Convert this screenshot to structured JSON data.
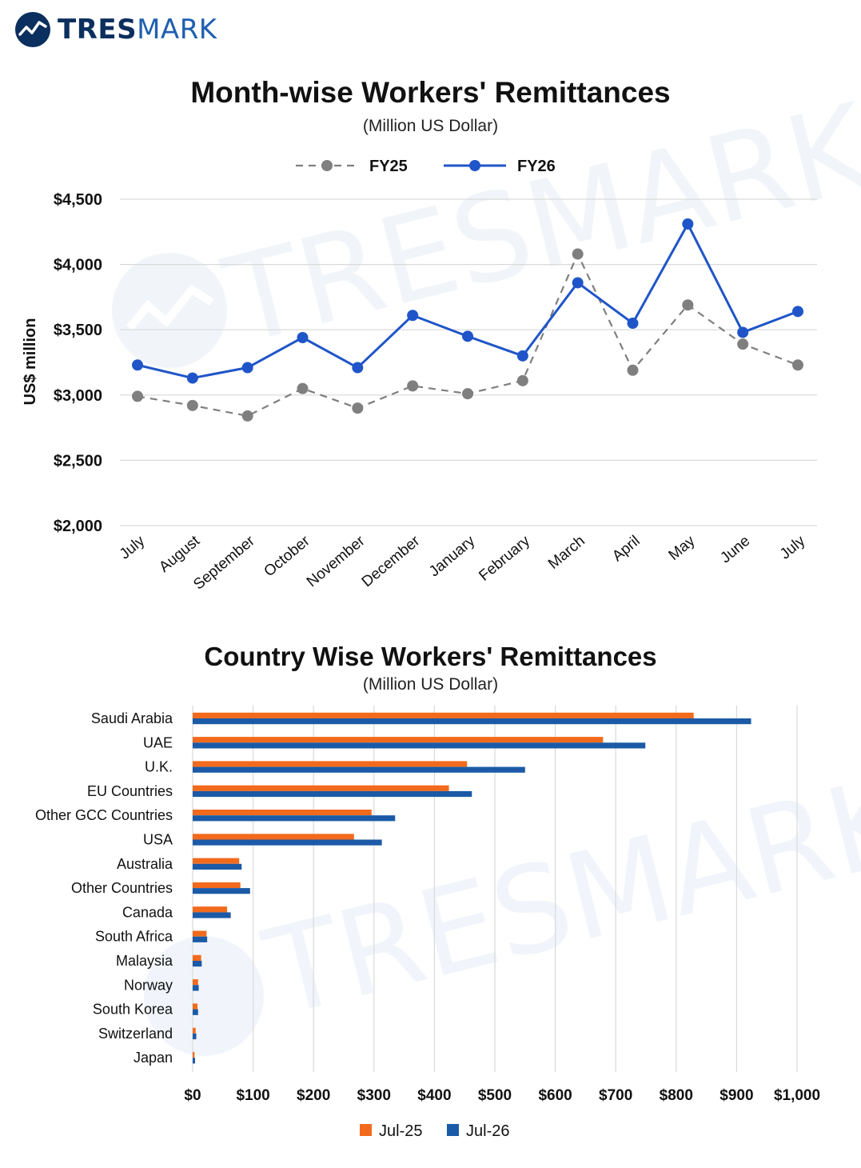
{
  "brand": {
    "name_part1": "TRES",
    "name_part2": "MARK",
    "watermark": "TRESMARK"
  },
  "colors": {
    "fy25": "#7f7f7f",
    "fy26": "#1f55c8",
    "jul25": "#f26b1d",
    "jul26": "#1b5aa6",
    "grid": "#d9d9d9"
  },
  "chart_data": [
    {
      "type": "line",
      "title": "Month-wise Workers' Remittances",
      "subtitle": "(Million US Dollar)",
      "ylabel": "US$ million",
      "xlabel": "",
      "categories": [
        "July",
        "August",
        "September",
        "October",
        "November",
        "December",
        "January",
        "February",
        "March",
        "April",
        "May",
        "June",
        "July"
      ],
      "ylim": [
        2000,
        4500
      ],
      "yticks": [
        2000,
        2500,
        3000,
        3500,
        4000,
        4500
      ],
      "ytick_labels": [
        "$2,000",
        "$2,500",
        "$3,000",
        "$3,500",
        "$4,000",
        "$4,500"
      ],
      "grid": true,
      "legend_position": "top-center",
      "series": [
        {
          "name": "FY25",
          "style": "dashed",
          "values": [
            2990,
            2920,
            2840,
            3050,
            2900,
            3070,
            3010,
            3110,
            4080,
            3190,
            3690,
            3390,
            3230
          ]
        },
        {
          "name": "FY26",
          "style": "solid",
          "values": [
            3230,
            3130,
            3210,
            3440,
            3210,
            3610,
            3450,
            3300,
            3860,
            3550,
            4310,
            3480,
            3640
          ]
        }
      ]
    },
    {
      "type": "bar",
      "orientation": "horizontal",
      "title": "Country Wise Workers' Remittances",
      "subtitle": "(Million US Dollar)",
      "xlabel": "",
      "ylabel": "",
      "categories": [
        "Saudi Arabia",
        "UAE",
        "U.K.",
        "EU Countries",
        "Other GCC Countries",
        "USA",
        "Australia",
        "Other Countries",
        "Canada",
        "South Africa",
        "Malaysia",
        "Norway",
        "South Korea",
        "Switzerland",
        "Japan"
      ],
      "xlim": [
        0,
        1000
      ],
      "xticks": [
        0,
        100,
        200,
        300,
        400,
        500,
        600,
        700,
        800,
        900,
        1000
      ],
      "xtick_labels": [
        "$0",
        "$100",
        "$200",
        "$300",
        "$400",
        "$500",
        "$600",
        "$700",
        "$800",
        "$900",
        "$1,000"
      ],
      "grid": true,
      "legend_position": "bottom-center",
      "series": [
        {
          "name": "Jul-25",
          "values": [
            829,
            679,
            454,
            424,
            296,
            267,
            77,
            79,
            57,
            23,
            14,
            9,
            8,
            5,
            3
          ]
        },
        {
          "name": "Jul-26",
          "values": [
            924,
            749,
            550,
            462,
            335,
            313,
            81,
            95,
            63,
            24,
            15,
            10,
            9,
            6,
            4
          ]
        }
      ]
    }
  ]
}
